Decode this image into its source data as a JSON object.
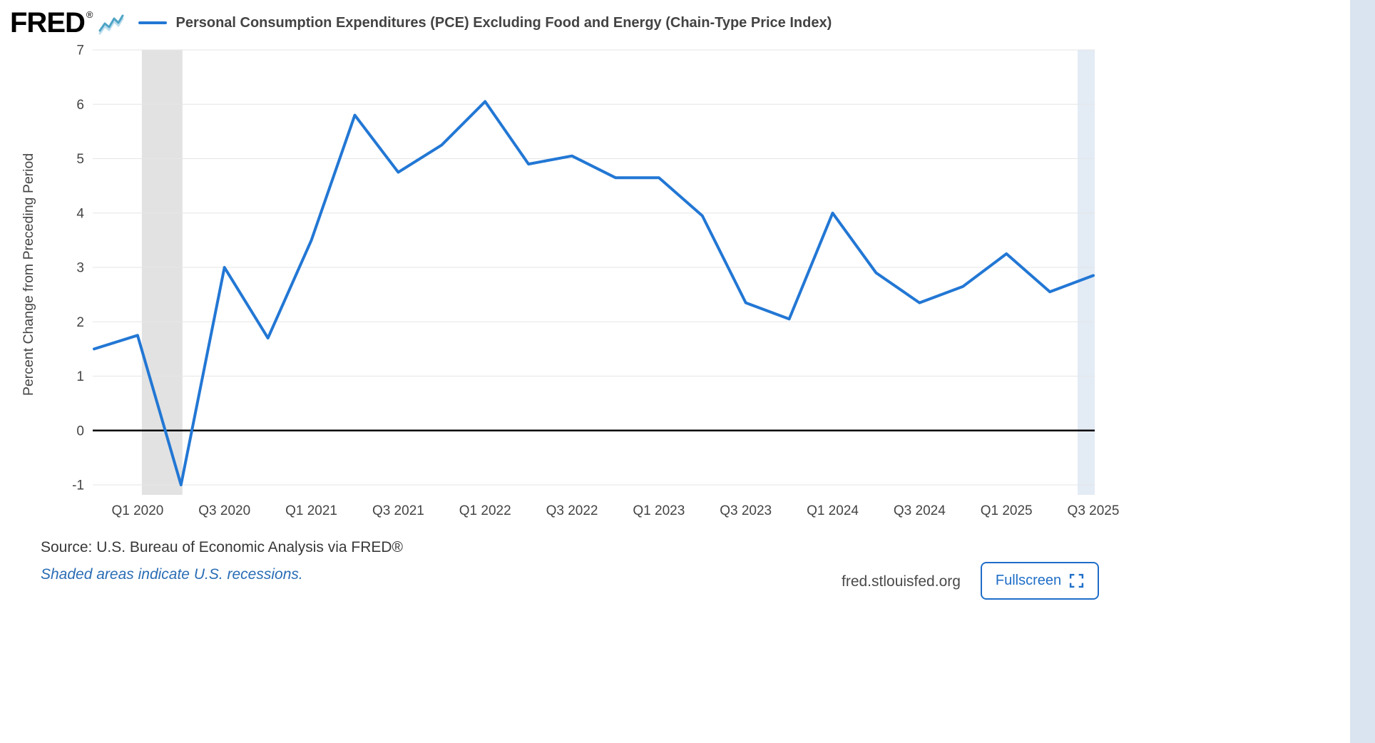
{
  "header": {
    "logo_text": "FRED",
    "registered_mark": "®"
  },
  "chart_data": {
    "type": "line",
    "title": "Personal Consumption Expenditures (PCE) Excluding Food and Energy (Chain-Type Price Index)",
    "ylabel": "Percent Change from Preceding Period",
    "xlabel": "",
    "x": [
      "Q4 2019",
      "Q1 2020",
      "Q2 2020",
      "Q3 2020",
      "Q4 2020",
      "Q1 2021",
      "Q2 2021",
      "Q3 2021",
      "Q4 2021",
      "Q1 2022",
      "Q2 2022",
      "Q3 2022",
      "Q4 2022",
      "Q1 2023",
      "Q2 2023",
      "Q3 2023",
      "Q4 2023",
      "Q1 2024",
      "Q2 2024",
      "Q3 2024",
      "Q4 2024",
      "Q1 2025",
      "Q2 2025",
      "Q3 2025"
    ],
    "values": [
      1.5,
      1.75,
      -1.0,
      3.0,
      1.7,
      3.5,
      5.8,
      4.75,
      5.25,
      6.05,
      4.9,
      5.05,
      4.65,
      4.65,
      3.95,
      2.35,
      2.05,
      4.0,
      2.9,
      2.35,
      2.65,
      3.25,
      2.55,
      2.85
    ],
    "x_tick_labels": [
      "Q1 2020",
      "Q3 2020",
      "Q1 2021",
      "Q3 2021",
      "Q1 2022",
      "Q3 2022",
      "Q1 2023",
      "Q3 2023",
      "Q1 2024",
      "Q3 2024",
      "Q1 2025",
      "Q3 2025"
    ],
    "yticks": [
      7,
      6,
      5,
      4,
      3,
      2,
      1,
      0,
      -1
    ],
    "ylim": [
      -1,
      7
    ],
    "grid": true,
    "zero_line": true,
    "legend_position": "top",
    "recession": {
      "start": "Q1 2020",
      "end": "Q2 2020"
    }
  },
  "footer": {
    "source": "Source: U.S. Bureau of Economic Analysis via FRED®",
    "recession_note": "Shaded areas indicate U.S. recessions.",
    "site": "fred.stlouisfed.org",
    "fullscreen_label": "Fullscreen"
  },
  "colors": {
    "line": "#2277d4",
    "recession": "#e2e2e2",
    "grid": "#e6e6e6",
    "zero_line": "#000000",
    "accent": "#1f6ec8",
    "note_link": "#2a6db5",
    "edge_band": "#e3ebf5",
    "page_strip": "#d9e4f0",
    "axis_text": "#444444",
    "title_text": "#434343",
    "logo_sparkline": "#4da3c6"
  }
}
